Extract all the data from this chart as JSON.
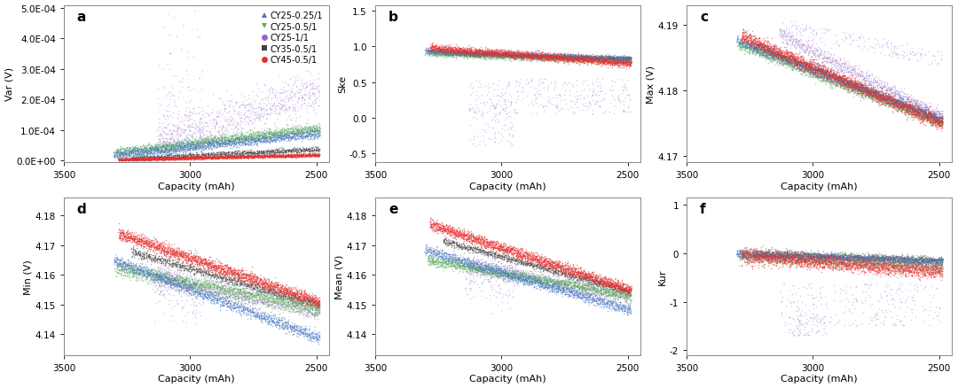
{
  "series": [
    {
      "label": "CY25-0.25/1",
      "color": "#4472C4",
      "marker": "o",
      "alpha": 0.5
    },
    {
      "label": "CY25-0.5/1",
      "color": "#5BAD5B",
      "marker": "o",
      "alpha": 0.5
    },
    {
      "label": "CY25-1/1",
      "color": "#9966CC",
      "marker": "o",
      "alpha": 0.35
    },
    {
      "label": "CY35-0.5/1",
      "color": "#404040",
      "marker": "o",
      "alpha": 0.55
    },
    {
      "label": "CY45-0.5/1",
      "color": "#E63030",
      "marker": "o",
      "alpha": 0.55
    }
  ],
  "panels": [
    {
      "label": "a",
      "ylabel": "Var (V)",
      "ylim": [
        -5e-06,
        0.00051
      ],
      "yticks": [
        0.0,
        0.0001,
        0.0002,
        0.0003,
        0.0004,
        0.0005
      ],
      "ytick_labels": [
        "0.0E+00",
        "1.0E-04",
        "2.0E-04",
        "3.0E-04",
        "4.0E-04",
        "5.0E-04"
      ]
    },
    {
      "label": "b",
      "ylabel": "Ske",
      "ylim": [
        -0.62,
        1.58
      ],
      "yticks": [
        -0.5,
        0.0,
        0.5,
        1.0,
        1.5
      ],
      "ytick_labels": [
        "-0.5",
        "0.0",
        "0.5",
        "1.0",
        "1.5"
      ]
    },
    {
      "label": "c",
      "ylabel": "Max (V)",
      "ylim": [
        4.169,
        4.193
      ],
      "yticks": [
        4.17,
        4.18,
        4.19
      ],
      "ytick_labels": [
        "4.17",
        "4.18",
        "4.19"
      ]
    },
    {
      "label": "d",
      "ylabel": "Min (V)",
      "ylim": [
        4.133,
        4.186
      ],
      "yticks": [
        4.14,
        4.15,
        4.16,
        4.17,
        4.18
      ],
      "ytick_labels": [
        "4.14",
        "4.15",
        "4.16",
        "4.17",
        "4.18"
      ]
    },
    {
      "label": "e",
      "ylabel": "Mean (V)",
      "ylim": [
        4.133,
        4.186
      ],
      "yticks": [
        4.14,
        4.15,
        4.16,
        4.17,
        4.18
      ],
      "ytick_labels": [
        "4.14",
        "4.15",
        "4.16",
        "4.17",
        "4.18"
      ]
    },
    {
      "label": "f",
      "ylabel": "Kur",
      "ylim": [
        -2.1,
        1.15
      ],
      "yticks": [
        -2,
        -1,
        0,
        1
      ],
      "ytick_labels": [
        "-2",
        "-1",
        "0",
        "1"
      ]
    }
  ],
  "xlim": [
    3500,
    2450
  ],
  "xticks": [
    3500,
    3000,
    2500
  ],
  "xlabel": "Capacity (mAh)",
  "background_color": "#ffffff"
}
